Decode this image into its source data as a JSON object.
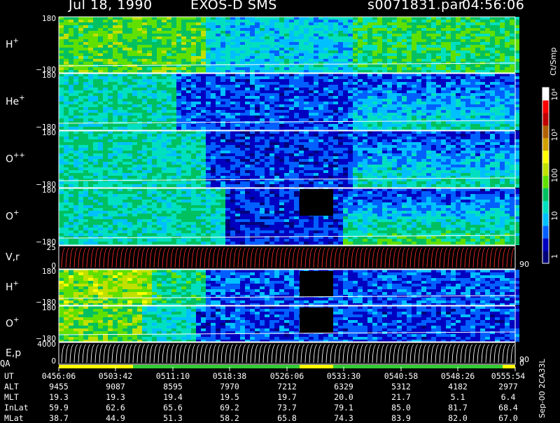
{
  "header": {
    "date": "Jul 18, 1990",
    "mission": "EXOS-D SMS",
    "file": "s0071831.par",
    "time": "04:56:06"
  },
  "colorbar": {
    "unit_label": "Ct/Smp",
    "tick_labels": [
      "1",
      "10",
      "100",
      "10³",
      "10⁴"
    ],
    "colors": [
      "#00007a",
      "#0000c0",
      "#0060ff",
      "#00c0ff",
      "#00e0c0",
      "#00c060",
      "#60e000",
      "#c0e000",
      "#ffff00",
      "#d0a000",
      "#b06000",
      "#c00000",
      "#ff0000",
      "#ffffff"
    ]
  },
  "panels": [
    {
      "label": "H",
      "sup": "+",
      "top_tick": "180",
      "bottom_tick": "−180"
    },
    {
      "label": "He",
      "sup": "+",
      "top_tick": "180",
      "bottom_tick": "−180"
    },
    {
      "label": "O",
      "sup": "++",
      "top_tick": "180",
      "bottom_tick": "−180"
    },
    {
      "label": "O",
      "sup": "+",
      "top_tick": "180",
      "bottom_tick": "−180"
    },
    {
      "label": "V,r",
      "sup": "",
      "top_tick": "25",
      "bottom_tick": "0",
      "right_tick": "90"
    },
    {
      "label": "H",
      "sup": "+",
      "top_tick": "180",
      "bottom_tick": "−180"
    },
    {
      "label": "O",
      "sup": "+",
      "top_tick": "180",
      "bottom_tick": "−180"
    },
    {
      "label": "E,p",
      "sup": "",
      "top_tick": "4000",
      "bottom_tick": "0",
      "right_tick": "90"
    }
  ],
  "qa_label": "QA",
  "qa_right_tick": "0",
  "footer_side_label": "Sep-00 2CA33L",
  "ephemeris": {
    "rows": [
      "UT",
      "ALT",
      "MLT",
      "InLat",
      "MLat"
    ],
    "columns": [
      [
        "0456:06",
        "9455",
        "19.3",
        "59.9",
        "38.7"
      ],
      [
        "0503:42",
        "9087",
        "19.3",
        "62.6",
        "44.9"
      ],
      [
        "0511:10",
        "8595",
        "19.4",
        "65.6",
        "51.3"
      ],
      [
        "0518:38",
        "7970",
        "19.5",
        "69.2",
        "58.2"
      ],
      [
        "0526:06",
        "7212",
        "19.7",
        "73.7",
        "65.8"
      ],
      [
        "0533:30",
        "6329",
        "20.0",
        "79.1",
        "74.3"
      ],
      [
        "0540:58",
        "5312",
        "21.7",
        "85.0",
        "83.9"
      ],
      [
        "0548:26",
        "4182",
        "5.1",
        "81.7",
        "82.0"
      ],
      [
        "0555:54",
        "2977",
        "6.4",
        "68.4",
        "67.0"
      ]
    ]
  },
  "chart_data": {
    "type": "heatmap",
    "title": "Jul 18, 1990   EXOS-D SMS",
    "x_ticks": [
      "0456:06",
      "0503:42",
      "0511:10",
      "0518:38",
      "0526:06",
      "0533:30",
      "0540:58",
      "0548:26",
      "0555:54"
    ],
    "color_scale": {
      "label": "Ct/Smp",
      "scale": "log",
      "range": [
        1,
        10000
      ]
    },
    "panels": [
      {
        "species": "H+",
        "ylim": [
          -180,
          180
        ]
      },
      {
        "species": "He+",
        "ylim": [
          -180,
          180
        ]
      },
      {
        "species": "O++",
        "ylim": [
          -180,
          180
        ]
      },
      {
        "species": "O+",
        "ylim": [
          -180,
          180
        ]
      },
      {
        "species": "V,r",
        "ylim": [
          0,
          25
        ],
        "right_tick": 90
      },
      {
        "species": "H+",
        "ylim": [
          -180,
          180
        ]
      },
      {
        "species": "O+",
        "ylim": [
          -180,
          180
        ]
      },
      {
        "species": "E,p",
        "ylim": [
          0,
          4000
        ],
        "right_tick": 90
      }
    ]
  }
}
